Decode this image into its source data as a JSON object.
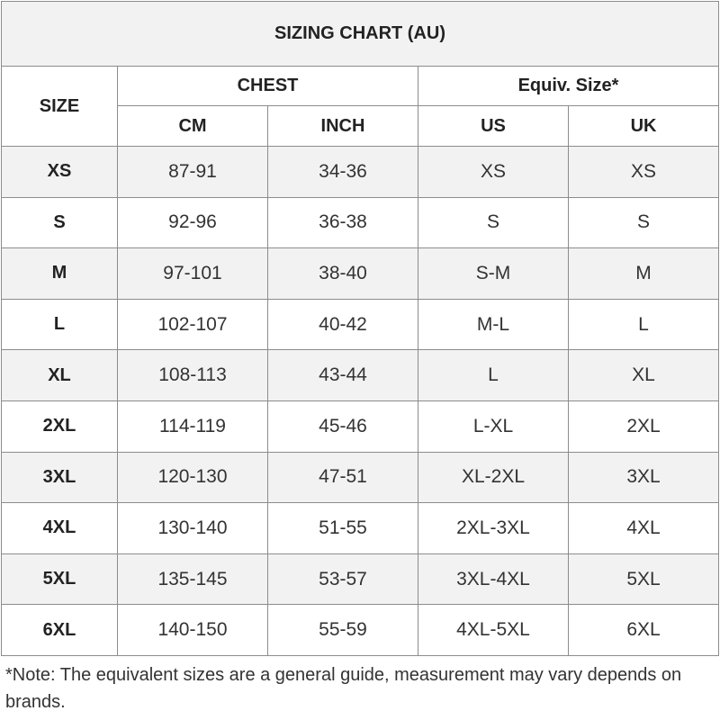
{
  "title": "SIZING CHART (AU)",
  "headers": {
    "size": "SIZE",
    "chest": "CHEST",
    "equiv": "Equiv. Size*",
    "cm": "CM",
    "inch": "INCH",
    "us": "US",
    "uk": "UK"
  },
  "rows": [
    {
      "size": "XS",
      "cm": "87-91",
      "inch": "34-36",
      "us": "XS",
      "uk": "XS"
    },
    {
      "size": "S",
      "cm": "92-96",
      "inch": "36-38",
      "us": "S",
      "uk": "S"
    },
    {
      "size": "M",
      "cm": "97-101",
      "inch": "38-40",
      "us": "S-M",
      "uk": "M"
    },
    {
      "size": "L",
      "cm": "102-107",
      "inch": "40-42",
      "us": "M-L",
      "uk": "L"
    },
    {
      "size": "XL",
      "cm": "108-113",
      "inch": "43-44",
      "us": "L",
      "uk": "XL"
    },
    {
      "size": "2XL",
      "cm": "114-119",
      "inch": "45-46",
      "us": "L-XL",
      "uk": "2XL"
    },
    {
      "size": "3XL",
      "cm": "120-130",
      "inch": "47-51",
      "us": "XL-2XL",
      "uk": "3XL"
    },
    {
      "size": "4XL",
      "cm": "130-140",
      "inch": "51-55",
      "us": "2XL-3XL",
      "uk": "4XL"
    },
    {
      "size": "5XL",
      "cm": "135-145",
      "inch": "53-57",
      "us": "3XL-4XL",
      "uk": "5XL"
    },
    {
      "size": "6XL",
      "cm": "140-150",
      "inch": "55-59",
      "us": "4XL-5XL",
      "uk": "6XL"
    }
  ],
  "note": "*Note: The equivalent sizes are a general guide, measurement may vary depends on brands.",
  "colors": {
    "stripe": "#f2f2f2",
    "border": "#8c8c8c"
  }
}
